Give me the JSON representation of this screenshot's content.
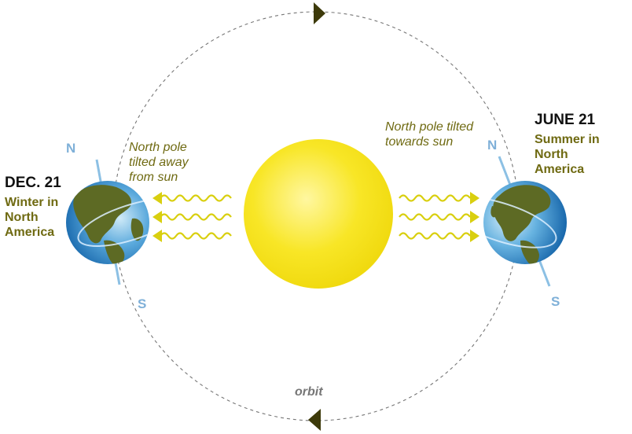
{
  "left_season": {
    "date": "DEC. 21",
    "caption_lines": [
      "Winter in",
      "North",
      "America"
    ],
    "tilt_lines": [
      "North pole",
      "tilted away",
      "from sun"
    ],
    "pole_north": "N",
    "pole_south": "S"
  },
  "right_season": {
    "date": "JUNE 21",
    "caption_lines": [
      "Summer in",
      "North",
      "America"
    ],
    "tilt_lines": [
      "North pole tilted",
      "towards sun"
    ],
    "pole_north": "N",
    "pole_south": "S"
  },
  "orbit_label": "orbit",
  "colors": {
    "sun": "#f7e51a",
    "sun_core": "#fff46a",
    "olive_text": "#6f6a12",
    "dark_text": "#111111",
    "pole_label": "#7fb0d8",
    "ray": "#d9cf0f",
    "orbit_line": "#777777",
    "arrow": "#3d3a0a",
    "ocean": "#2e7fc6",
    "ocean_light": "#bfe2f7",
    "land": "#5d6a24"
  }
}
